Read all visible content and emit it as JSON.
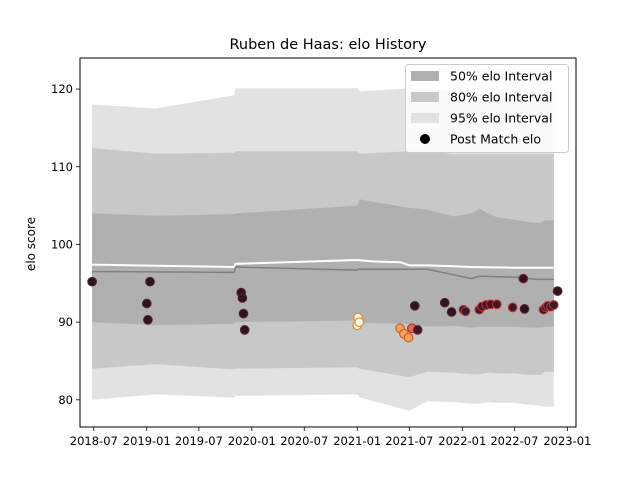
{
  "chart_data": {
    "type": "scatter",
    "title": "Ruben de Haas: elo History",
    "xlabel": "",
    "ylabel": "elo score",
    "xlim": [
      "2018-05-14",
      "2023-01-31"
    ],
    "ylim": [
      76.5,
      124
    ],
    "x_ticks": [
      {
        "date": "2018-07-01",
        "label": "2018-07"
      },
      {
        "date": "2019-01-01",
        "label": "2019-01"
      },
      {
        "date": "2019-07-01",
        "label": "2019-07"
      },
      {
        "date": "2020-01-01",
        "label": "2020-01"
      },
      {
        "date": "2020-07-01",
        "label": "2020-07"
      },
      {
        "date": "2021-01-01",
        "label": "2021-01"
      },
      {
        "date": "2021-07-01",
        "label": "2021-07"
      },
      {
        "date": "2022-01-01",
        "label": "2022-01"
      },
      {
        "date": "2022-07-01",
        "label": "2022-07"
      },
      {
        "date": "2023-01-01",
        "label": "2023-01"
      }
    ],
    "y_ticks": [
      80,
      90,
      100,
      110,
      120
    ],
    "grid": false,
    "legend_position": "top-right",
    "legend": [
      {
        "label": "50% elo Interval",
        "kind": "band",
        "color": "#b0b0b0"
      },
      {
        "label": "80% elo Interval",
        "kind": "band",
        "color": "#c8c8c8"
      },
      {
        "label": "95% elo Interval",
        "kind": "band",
        "color": "#e2e2e2"
      },
      {
        "label": "Post Match elo",
        "kind": "marker",
        "color": "#000000"
      }
    ],
    "bands": {
      "x": [
        "2018-06-25",
        "2019-02-01",
        "2019-11-01",
        "2019-11-05",
        "2021-01-01",
        "2021-01-10",
        "2021-07-01",
        "2021-09-01",
        "2021-12-01",
        "2022-02-01",
        "2022-03-01",
        "2022-04-01",
        "2022-05-01",
        "2022-07-01",
        "2022-09-01",
        "2022-10-01",
        "2022-10-15",
        "2022-11-15"
      ],
      "p95_high": [
        118,
        117.5,
        119.2,
        120.1,
        120.1,
        119.7,
        120.1,
        120.1,
        119.7,
        119.7,
        119.6,
        119.6,
        119.6,
        119.6,
        119.6,
        119.6,
        120.0,
        120.0
      ],
      "p95_low": [
        80,
        80.7,
        80.3,
        80.5,
        80.7,
        80.3,
        78.6,
        79.8,
        79.7,
        79.5,
        79.5,
        79.7,
        79.6,
        79.6,
        79.3,
        79.2,
        79.1,
        79.1
      ],
      "p80_high": [
        112.4,
        111.7,
        111.8,
        112.0,
        112.0,
        111.7,
        112.0,
        112.0,
        111.6,
        111.6,
        111.6,
        111.6,
        111.6,
        111.6,
        111.6,
        111.6,
        111.6,
        111.6
      ],
      "p80_low": [
        84,
        84.6,
        83.9,
        84.0,
        84.2,
        84.0,
        82.9,
        83.6,
        83.5,
        83.3,
        83.3,
        83.5,
        83.4,
        83.4,
        83.2,
        83.2,
        83.6,
        83.6
      ],
      "p50_high": [
        104,
        103.7,
        103.9,
        104.0,
        105.0,
        105.8,
        104.7,
        104.5,
        103.6,
        104.0,
        104.6,
        104.0,
        103.5,
        103.2,
        102.8,
        102.8,
        103.1,
        103.1
      ],
      "p50_low": [
        90,
        89.6,
        89.8,
        90.0,
        90.2,
        89.9,
        89.8,
        89.4,
        89.5,
        89.3,
        89.4,
        89.4,
        89.4,
        89.4,
        89.3,
        89.3,
        89.4,
        89.4
      ]
    },
    "series": [
      {
        "kind": "line",
        "color": "#ffffff",
        "x": [
          "2018-06-25",
          "2019-11-01",
          "2019-11-05",
          "2021-01-01",
          "2021-03-01",
          "2021-06-01",
          "2021-07-01",
          "2021-09-01",
          "2021-12-01",
          "2022-02-01",
          "2022-07-01",
          "2022-11-15"
        ],
        "y": [
          97.4,
          97.1,
          97.5,
          98.0,
          97.8,
          97.7,
          97.3,
          97.3,
          97.2,
          97.1,
          97.0,
          97.0
        ]
      },
      {
        "kind": "line",
        "color": "#808080",
        "x": [
          "2018-06-25",
          "2019-11-01",
          "2019-11-05",
          "2021-01-01",
          "2021-01-05",
          "2021-09-01",
          "2021-12-01",
          "2022-02-01",
          "2022-03-01",
          "2022-07-01",
          "2022-09-15",
          "2022-11-15"
        ],
        "y": [
          96.5,
          96.4,
          97.1,
          96.7,
          96.8,
          96.8,
          96.1,
          95.6,
          95.9,
          95.8,
          95.5,
          95.5
        ]
      },
      {
        "name": "Post Match elo",
        "kind": "scatter",
        "points": [
          {
            "x": "2018-06-25",
            "y": 95.2,
            "fill": "#2a1520",
            "edge": "#5a2030"
          },
          {
            "x": "2019-01-01",
            "y": 92.4,
            "fill": "#2a1520",
            "edge": "#5a2030"
          },
          {
            "x": "2019-01-05",
            "y": 90.3,
            "fill": "#2a1520",
            "edge": "#5a2030"
          },
          {
            "x": "2019-01-12",
            "y": 95.2,
            "fill": "#2a1520",
            "edge": "#5a2030"
          },
          {
            "x": "2019-11-25",
            "y": 93.8,
            "fill": "#2a1520",
            "edge": "#5a2030"
          },
          {
            "x": "2019-11-29",
            "y": 93.1,
            "fill": "#2a1520",
            "edge": "#5a2030"
          },
          {
            "x": "2019-12-03",
            "y": 91.1,
            "fill": "#2a1520",
            "edge": "#5a2030"
          },
          {
            "x": "2019-12-07",
            "y": 89.0,
            "fill": "#2a1520",
            "edge": "#5a2030"
          },
          {
            "x": "2021-01-01",
            "y": 89.6,
            "fill": "#fff4e8",
            "edge": "#e08a2a"
          },
          {
            "x": "2021-01-04",
            "y": 90.6,
            "fill": "#fff4e8",
            "edge": "#e08a2a"
          },
          {
            "x": "2021-01-08",
            "y": 90.0,
            "fill": "#fff4e8",
            "edge": "#e08a2a"
          },
          {
            "x": "2021-05-30",
            "y": 89.2,
            "fill": "#f3a060",
            "edge": "#c85a20"
          },
          {
            "x": "2021-06-12",
            "y": 88.5,
            "fill": "#f3a060",
            "edge": "#c85a20"
          },
          {
            "x": "2021-06-28",
            "y": 88.0,
            "fill": "#f3a060",
            "edge": "#c85a20"
          },
          {
            "x": "2021-07-10",
            "y": 89.2,
            "fill": "#e06b50",
            "edge": "#a02a30"
          },
          {
            "x": "2021-07-20",
            "y": 92.1,
            "fill": "#2a1520",
            "edge": "#5a2030"
          },
          {
            "x": "2021-07-30",
            "y": 89.0,
            "fill": "#3a1828",
            "edge": "#7a2030"
          },
          {
            "x": "2021-11-01",
            "y": 92.5,
            "fill": "#2a1520",
            "edge": "#5a2030"
          },
          {
            "x": "2021-11-25",
            "y": 91.3,
            "fill": "#2a1520",
            "edge": "#5a2030"
          },
          {
            "x": "2022-01-05",
            "y": 91.6,
            "fill": "#3a1828",
            "edge": "#c03030"
          },
          {
            "x": "2022-01-12",
            "y": 91.4,
            "fill": "#3a1828",
            "edge": "#c03030"
          },
          {
            "x": "2022-03-01",
            "y": 91.6,
            "fill": "#3a1828",
            "edge": "#c03030"
          },
          {
            "x": "2022-03-10",
            "y": 92.0,
            "fill": "#3a1828",
            "edge": "#c03030"
          },
          {
            "x": "2022-03-25",
            "y": 92.2,
            "fill": "#3a1828",
            "edge": "#c03030"
          },
          {
            "x": "2022-04-10",
            "y": 92.3,
            "fill": "#3a1828",
            "edge": "#c03030"
          },
          {
            "x": "2022-05-01",
            "y": 92.3,
            "fill": "#3a1828",
            "edge": "#c03030"
          },
          {
            "x": "2022-06-25",
            "y": 91.9,
            "fill": "#3a1828",
            "edge": "#c03030"
          },
          {
            "x": "2022-08-01",
            "y": 95.6,
            "fill": "#2a1520",
            "edge": "#8a2030"
          },
          {
            "x": "2022-08-05",
            "y": 91.7,
            "fill": "#2a1520",
            "edge": "#5a2030"
          },
          {
            "x": "2022-10-10",
            "y": 91.6,
            "fill": "#3a1828",
            "edge": "#c03030"
          },
          {
            "x": "2022-10-18",
            "y": 91.9,
            "fill": "#3a1828",
            "edge": "#c03030"
          },
          {
            "x": "2022-10-25",
            "y": 92.1,
            "fill": "#3a1828",
            "edge": "#c03030"
          },
          {
            "x": "2022-11-05",
            "y": 92.0,
            "fill": "#3a1828",
            "edge": "#c03030"
          },
          {
            "x": "2022-11-15",
            "y": 92.2,
            "fill": "#3a1828",
            "edge": "#c03030"
          },
          {
            "x": "2022-11-28",
            "y": 94.0,
            "fill": "#2a1520",
            "edge": "#5a2030"
          }
        ]
      }
    ]
  }
}
